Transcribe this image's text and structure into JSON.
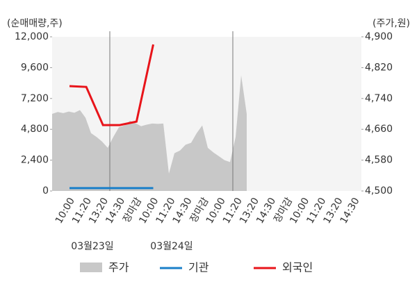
{
  "chart_data": {
    "type": "line",
    "y_axis_label": "(순매매량,주)",
    "y2_axis_label": "(주가,원)",
    "categories": [
      "10:00",
      "11:20",
      "13:20",
      "14:30",
      "장마감",
      "10:00",
      "11:20",
      "14:30",
      "장마감",
      "10:00",
      "11:20",
      "13:20",
      "14:30",
      "장마감",
      "10:00",
      "11:20",
      "13:20",
      "14:30"
    ],
    "category_label_colors": [
      "#333",
      "#333",
      "#333",
      "#333",
      "#e8141a",
      "#333",
      "#333",
      "#333",
      "#e8141a",
      "#333",
      "#333",
      "#333",
      "#333",
      "#e8141a",
      "#111",
      "#333",
      "#333",
      "#333"
    ],
    "dates": [
      "03월23일",
      "03월24일"
    ],
    "ylim": [
      0,
      12000
    ],
    "yticks": [
      0,
      {
        "value": 2400,
        "label": "2,400"
      },
      {
        "value": 4800,
        "label": "4,800"
      },
      {
        "value": 7200,
        "label": "7,200"
      },
      {
        "value": 9600,
        "label": "9,600"
      },
      {
        "value": 12000,
        "label": "12,000"
      }
    ],
    "y2lim": [
      4500,
      4900
    ],
    "y2ticks": [
      {
        "value": 4500,
        "label": "4,500"
      },
      {
        "value": 4580,
        "label": "4,580"
      },
      {
        "value": 4660,
        "label": "4,660"
      },
      {
        "value": 4740,
        "label": "4,740"
      },
      {
        "value": 4820,
        "label": "4,820"
      },
      {
        "value": 4900,
        "label": "4,900"
      }
    ],
    "price": {
      "name": "주가",
      "color": "#c8c8c8",
      "axis": "y2",
      "values": [
        4700,
        4705,
        4702,
        4706,
        4703,
        4710,
        4690,
        4650,
        4640,
        4628,
        4612,
        4640,
        4665,
        4670,
        4682,
        4676,
        4668,
        4672,
        4675,
        4674,
        4675,
        4545,
        4598,
        4605,
        4620,
        4625,
        4650,
        4670,
        4612,
        4600,
        4590,
        4580,
        4575,
        4640,
        4800,
        4700
      ]
    },
    "series": [
      {
        "name": "기관",
        "color": "#1a7fc9",
        "values": [
          220,
          220,
          220,
          220,
          220,
          220,
          null,
          null,
          null,
          null,
          null,
          null,
          null,
          null,
          null,
          null,
          null,
          null
        ]
      },
      {
        "name": "외국인",
        "color": "#e8141a",
        "values": [
          8160,
          8100,
          5130,
          5130,
          5400,
          11400,
          null,
          null,
          null,
          null,
          null,
          null,
          null,
          null,
          null,
          null,
          null,
          null
        ]
      }
    ]
  }
}
